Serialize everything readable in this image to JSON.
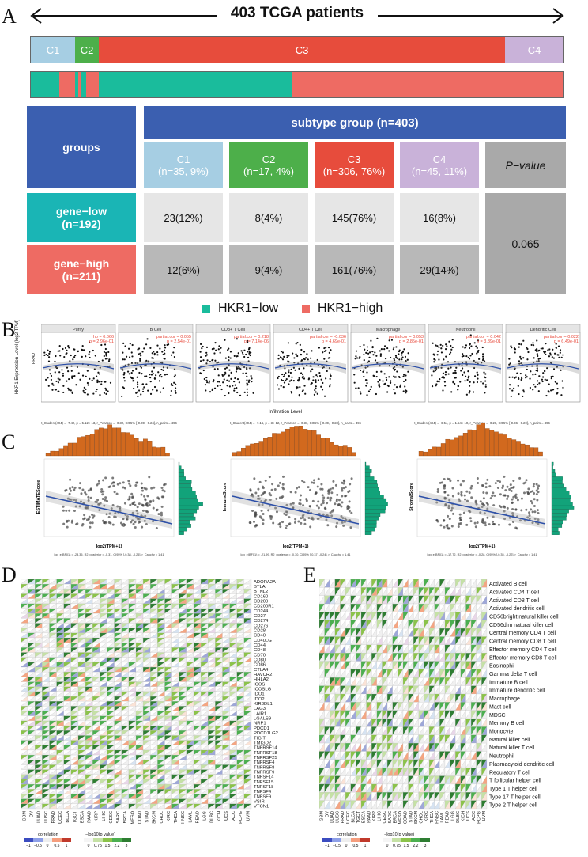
{
  "panels": {
    "a": "A",
    "b": "B",
    "c": "C",
    "d": "D",
    "e": "E"
  },
  "panel_a": {
    "title": "403 TCGA patients",
    "subtypes": [
      {
        "label": "C1",
        "color": "#a6cee3"
      },
      {
        "label": "C2",
        "color": "#4daf4a"
      },
      {
        "label": "C3",
        "color": "#e74c3c"
      },
      {
        "label": "C4",
        "color": "#c9b2d9"
      }
    ],
    "table": {
      "header_group": "groups",
      "header_subtype": "subtype group (n=403)",
      "subtype_headers": [
        {
          "name": "C1",
          "n": "(n=35, 9%)"
        },
        {
          "name": "C2",
          "n": "(n=17, 4%)"
        },
        {
          "name": "C3",
          "n": "(n=306, 76%)"
        },
        {
          "name": "C4",
          "n": "(n=45, 11%)"
        }
      ],
      "pvalue_header": "P−value",
      "rows": [
        {
          "group": "gene−low",
          "n": "(n=192)",
          "values": [
            "23(12%)",
            "8(4%)",
            "145(76%)",
            "16(8%)"
          ]
        },
        {
          "group": "gene−high",
          "n": "(n=211)",
          "values": [
            "12(6%)",
            "9(4%)",
            "161(76%)",
            "29(14%)"
          ]
        }
      ],
      "pvalue": "0.065"
    },
    "legend": [
      {
        "label": "HKR1−low",
        "color": "#1abc9c"
      },
      {
        "label": "HKR1−high",
        "color": "#ee6b63"
      }
    ]
  },
  "panel_b": {
    "ylabel": "HKR1 Expression Level (log2 TPM)",
    "row_label": "PRAD",
    "xlabel": "Infiltration Level",
    "facets": [
      {
        "name": "Purity",
        "cor": "rho = 0.066",
        "p": "p = 2.96e-01"
      },
      {
        "name": "B Cell",
        "cor": "partial.cor = 0.055",
        "p": "p = 2.54e-01"
      },
      {
        "name": "CD8+ T Cell",
        "cor": "partial.cor = 0.218",
        "p": "p = 7.14e-06"
      },
      {
        "name": "CD4+ T Cell",
        "cor": "partial.cor = -0.036",
        "p": "p = 4.69e-01"
      },
      {
        "name": "Macrophage",
        "cor": "partial.cor = 0.053",
        "p": "p = 2.85e-01"
      },
      {
        "name": "Neutrophil",
        "cor": "partial.cor = 0.042",
        "p": "p = 3.89e-01"
      },
      {
        "name": "Dendritic Cell",
        "cor": "partial.cor = 0.022",
        "p": "p = 6.49e-01"
      }
    ]
  },
  "panel_c": {
    "stats": [
      "t_Student(494) = -7.42, p = 5.12e-13, r_Pearson = -0.32, CI95% [-0.39, -0.24], n_pairs = 496",
      "t_Student(494) = -7.16, p = 3e-12, r_Pearson = -0.31, CI95% [-0.39, -0.23], n_pairs = 496",
      "t_Student(494) = -6.54, p = 1.54e-10, r_Pearson = -0.28, CI95% [-0.36, -0.20], n_pairs = 496"
    ],
    "plots": [
      {
        "ylabel": "ESTIMATEScore",
        "xlabel": "log2(TPM+1)"
      },
      {
        "ylabel": "ImmuneScore",
        "xlabel": "log2(TPM+1)"
      },
      {
        "ylabel": "StromalScore",
        "xlabel": "log2(TPM+1)"
      }
    ],
    "bayes": [
      "log_e(BF01) = -23.35, R2_posterior = -0.31, CI95% [-0.38, -0.25], r_Cauchy = 1.41",
      "log_e(BF01) = -21.99, R2_posterior = -0.30, CI95% [-0.37, -0.24], r_Cauchy = 1.41",
      "log_e(BF01) = -17.72, R2_posterior = -0.28, CI95% [-0.35, -0.22], r_Cauchy = 1.41"
    ]
  },
  "panel_d": {
    "genes": [
      "ADORA2A",
      "BTLA",
      "BTNL2",
      "CD160",
      "CD200",
      "CD200R1",
      "CD244",
      "CD27",
      "CD274",
      "CD276",
      "CD28",
      "CD40",
      "CD40LG",
      "CD44",
      "CD48",
      "CD70",
      "CD80",
      "CD86",
      "CTLA4",
      "HAVCR2",
      "HHLA2",
      "ICOS",
      "ICOSLG",
      "IDO1",
      "IDO2",
      "KIR3DL1",
      "LAG3",
      "LAIR1",
      "LGALS9",
      "NRP1",
      "PDCD1",
      "PDCD1LG2",
      "TIGIT",
      "TMIGD2",
      "TNFRSF14",
      "TNFRSF18",
      "TNFRSF25",
      "TNFRSF4",
      "TNFRSF8",
      "TNFRSF9",
      "TNFSF14",
      "TNFSF15",
      "TNFSF18",
      "TNFSF4",
      "TNFSF9",
      "VSIR",
      "VTCN1"
    ],
    "cancers": [
      "GBM",
      "OV",
      "LUAD",
      "LUSC",
      "PRAD",
      "UCEC",
      "BLCA",
      "TGCT",
      "ESCA",
      "PAAD",
      "KIRP",
      "LIHC",
      "CESC",
      "SARC",
      "BRCA",
      "MESO",
      "COAD",
      "STAD",
      "SKCM",
      "CHOL",
      "KIRC",
      "THCA",
      "HNSC",
      "LAML",
      "READ",
      "LGG",
      "DLBC",
      "KICH",
      "UCS",
      "ACC",
      "PCPG",
      "UVM"
    ]
  },
  "panel_e": {
    "cells": [
      "Activated B cell",
      "Activated CD4 T cell",
      "Activated CD8 T cell",
      "Activated dendritic cell",
      "CD56bright natural killer cell",
      "CD56dim natural killer cell",
      "Central memory CD4 T cell",
      "Central memory CD8 T cell",
      "Effector memory CD4 T cell",
      "Effector memory CD8 T cell",
      "Eosinophil",
      "Gamma delta T cell",
      "Immature  B cell",
      "Immature dendritic cell",
      "Macrophage",
      "Mast cell",
      "MDSC",
      "Memory B cell",
      "Monocyte",
      "Natural killer cell",
      "Natural killer T cell",
      "Neutrophil",
      "Plasmacytoid dendritic cell",
      "Regulatory T cell",
      "T follicular helper cell",
      "Type 1 T helper cell",
      "Type 17 T helper cell",
      "Type 2 T helper cell"
    ],
    "cancers": [
      "GBM",
      "OV",
      "LUAD",
      "LUSC",
      "PRAD",
      "UCEC",
      "BLCA",
      "TGCT",
      "ESCA",
      "PAAD",
      "KIRP",
      "LIHC",
      "CESC",
      "SARC",
      "BRCA",
      "MESO",
      "COAD",
      "STAD",
      "SKCM",
      "CHOL",
      "KIRC",
      "THCA",
      "HNSC",
      "LAML",
      "READ",
      "LGG",
      "DLBC",
      "KICH",
      "UCS",
      "ACC",
      "PCPG",
      "UVM"
    ]
  },
  "heat_legend": {
    "corr_title": "correlation",
    "corr_ticks": [
      "−1",
      "−0.5",
      "0",
      "0.5",
      "1"
    ],
    "p_title": "−log10(p value)",
    "p_ticks": [
      "0",
      "0.75",
      "1.5",
      "2.2",
      "3"
    ]
  }
}
